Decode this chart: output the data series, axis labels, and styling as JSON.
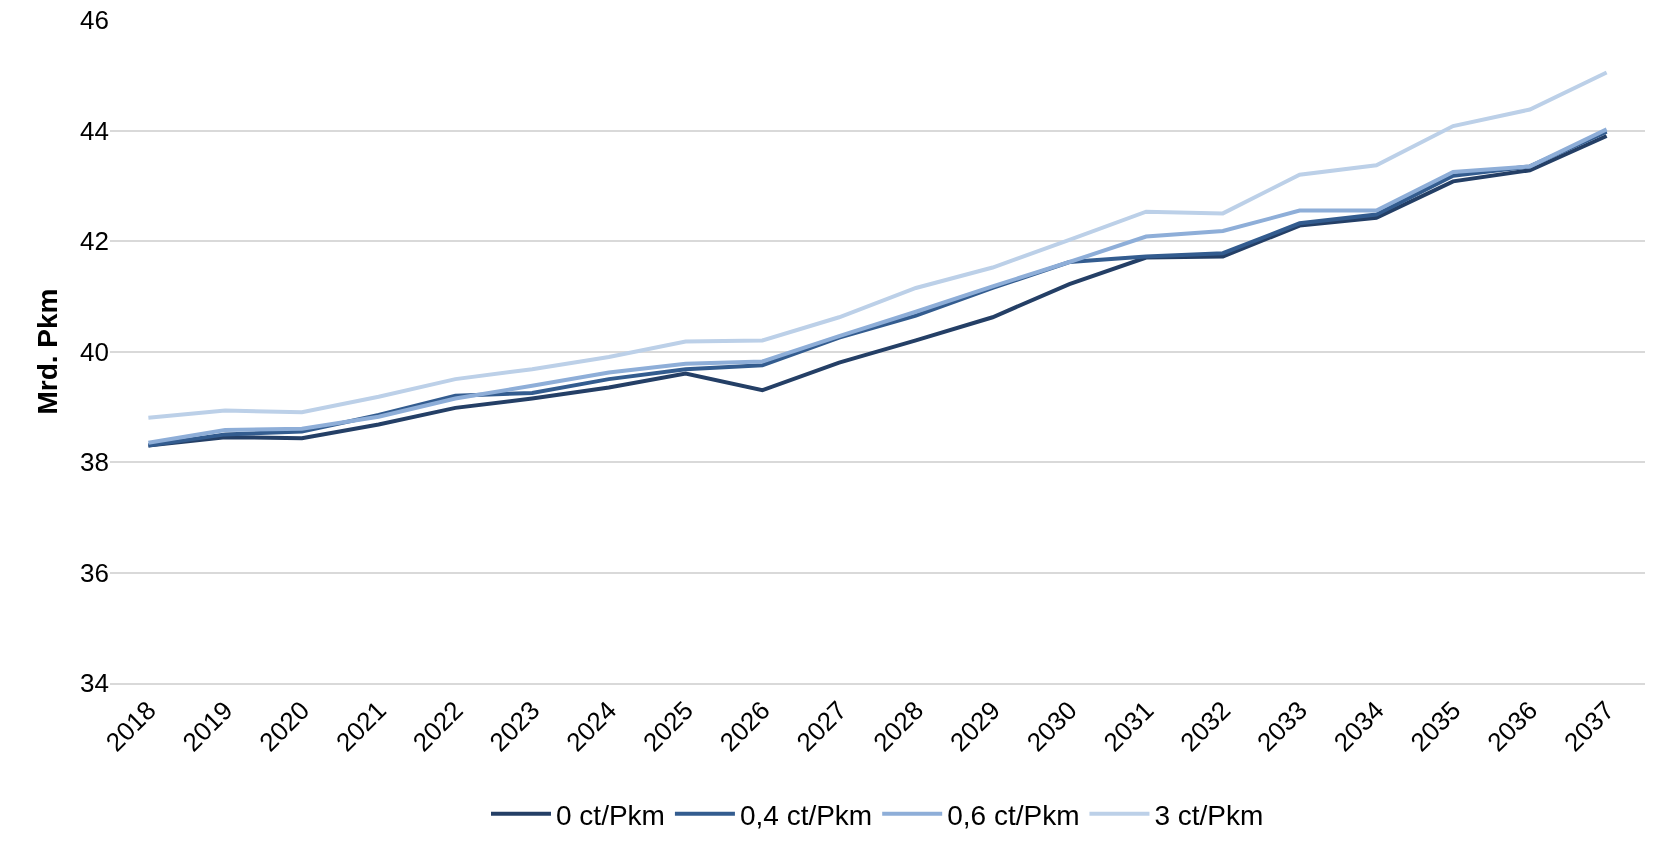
{
  "chart_data": {
    "type": "line",
    "ylabel": "Mrd. Pkm",
    "categories": [
      "2018",
      "2019",
      "2020",
      "2021",
      "2022",
      "2023",
      "2024",
      "2025",
      "2026",
      "2027",
      "2028",
      "2029",
      "2030",
      "2031",
      "2032",
      "2033",
      "2034",
      "2035",
      "2036",
      "2037"
    ],
    "series": [
      {
        "name": "0 ct/Pkm",
        "color": "#243f66",
        "values": [
          38.3,
          38.45,
          38.43,
          38.68,
          38.98,
          39.15,
          39.35,
          39.6,
          39.3,
          39.8,
          40.2,
          40.62,
          41.22,
          41.7,
          41.72,
          42.28,
          42.42,
          43.08,
          43.28,
          43.9
        ]
      },
      {
        "name": "0,4 ct/Pkm",
        "color": "#335c8f",
        "values": [
          38.3,
          38.5,
          38.55,
          38.85,
          39.2,
          39.25,
          39.5,
          39.68,
          39.75,
          40.25,
          40.65,
          41.15,
          41.62,
          41.72,
          41.78,
          42.32,
          42.48,
          43.18,
          43.35,
          43.98
        ]
      },
      {
        "name": "0,6 ct/Pkm",
        "color": "#8eaed8",
        "values": [
          38.35,
          38.58,
          38.6,
          38.82,
          39.15,
          39.38,
          39.62,
          39.78,
          39.82,
          40.28,
          40.72,
          41.18,
          41.62,
          42.08,
          42.18,
          42.55,
          42.55,
          43.25,
          43.35,
          44.02
        ]
      },
      {
        "name": "3 ct/Pkm",
        "color": "#bcd0e8",
        "values": [
          38.8,
          38.93,
          38.9,
          39.18,
          39.5,
          39.68,
          39.9,
          40.18,
          40.2,
          40.62,
          41.15,
          41.52,
          42.02,
          42.53,
          42.5,
          43.2,
          43.37,
          44.08,
          44.38,
          45.05
        ]
      }
    ],
    "ylim": [
      34,
      46
    ],
    "yticks": [
      34,
      36,
      38,
      40,
      42,
      44,
      46
    ],
    "grid": "y",
    "legend": "bottom",
    "marker": "none",
    "line_style": "solid"
  }
}
